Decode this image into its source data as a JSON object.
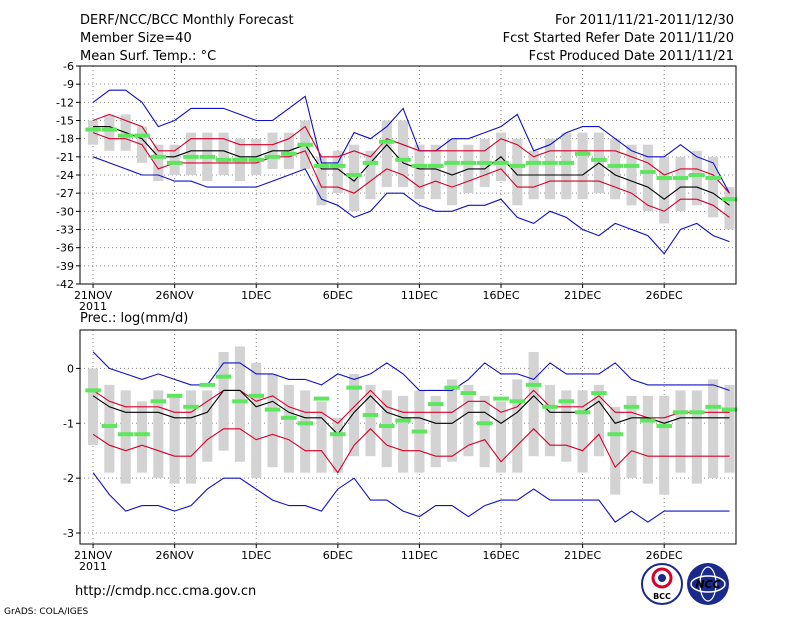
{
  "header": {
    "title": "DERF/NCC/BCC Monthly Forecast",
    "member": "Member Size=40",
    "variable": "Mean Surf. Temp.: °C",
    "period": "For 2011/11/21-2011/12/30",
    "started": "Fcst Started Refer Date 2011/11/20",
    "produced": "Fcst Produced Date 2011/11/21"
  },
  "footer": {
    "url": "http://cmdp.ncc.cma.gov.cn",
    "grads": "GrADS: COLA/IGES",
    "bcc_logo_text": "BCC",
    "ncc_logo_text": "NCC"
  },
  "colors": {
    "mean": "#000000",
    "spread": "#d6002a",
    "extreme": "#1010c8",
    "box": "#d3d3d3",
    "observed": "#5ee65e",
    "grid": "#888888"
  },
  "chart_data": [
    {
      "type": "line",
      "title": "Mean Surf. Temp.: °C",
      "xlabel": "",
      "ylabel": "",
      "x_tick_labels": [
        "21NOV",
        "26NOV",
        "1DEC",
        "6DEC",
        "11DEC",
        "16DEC",
        "21DEC",
        "26DEC"
      ],
      "x_tick_days": [
        1,
        6,
        11,
        16,
        21,
        26,
        31,
        36
      ],
      "x_year_label": "2011",
      "xlim": [
        0.2,
        40.4
      ],
      "ylim": [
        -42,
        -6
      ],
      "y_ticks": [
        -42,
        -39,
        -36,
        -33,
        -30,
        -27,
        -24,
        -21,
        -18,
        -15,
        -12,
        -9,
        -6
      ],
      "days": [
        1,
        2,
        3,
        4,
        5,
        6,
        7,
        8,
        9,
        10,
        11,
        12,
        13,
        14,
        15,
        16,
        17,
        18,
        19,
        20,
        21,
        22,
        23,
        24,
        25,
        26,
        27,
        28,
        29,
        30,
        31,
        32,
        33,
        34,
        35,
        36,
        37,
        38,
        39,
        40
      ],
      "series": [
        {
          "name": "ensemble max",
          "color_key": "extreme",
          "values": [
            -12,
            -10,
            -10,
            -12,
            -16,
            -15,
            -13,
            -13,
            -13,
            -14,
            -15,
            -15,
            -13,
            -11,
            -22,
            -22,
            -17,
            -18,
            -16,
            -13,
            -20,
            -20,
            -18,
            -18,
            -17,
            -16,
            -14,
            -20,
            -19,
            -17,
            -16,
            -16,
            -18,
            -20,
            -21,
            -21,
            -19,
            -21,
            -22,
            -27
          ]
        },
        {
          "name": "upper spread",
          "color_key": "spread",
          "values": [
            -15,
            -14,
            -15,
            -16,
            -20,
            -20,
            -18,
            -18,
            -18,
            -19,
            -19,
            -19,
            -18,
            -16,
            -21,
            -21,
            -20,
            -21,
            -18,
            -19,
            -20,
            -20,
            -20,
            -20,
            -20,
            -18,
            -19,
            -21,
            -20,
            -20,
            -20,
            -20,
            -20,
            -21,
            -22,
            -24,
            -23,
            -23,
            -24,
            -27
          ]
        },
        {
          "name": "ensemble mean",
          "color_key": "mean",
          "values": [
            -16,
            -16,
            -17,
            -18,
            -21,
            -21,
            -20,
            -20,
            -20,
            -21,
            -21,
            -20,
            -20,
            -19,
            -23,
            -23,
            -25,
            -22,
            -19,
            -22,
            -23,
            -23,
            -24,
            -23,
            -23,
            -21,
            -24,
            -24,
            -24,
            -24,
            -24,
            -22,
            -24,
            -25,
            -26,
            -28,
            -26,
            -26,
            -27,
            -29
          ]
        },
        {
          "name": "lower spread",
          "color_key": "spread",
          "values": [
            -17,
            -18,
            -18,
            -19,
            -23,
            -22,
            -22,
            -22,
            -22,
            -22,
            -22,
            -21,
            -21,
            -20,
            -26,
            -26,
            -27,
            -25,
            -23,
            -24,
            -26,
            -25,
            -26,
            -25,
            -24,
            -23,
            -26,
            -26,
            -25,
            -25,
            -25,
            -25,
            -26,
            -27,
            -29,
            -30,
            -28,
            -28,
            -29,
            -31
          ]
        },
        {
          "name": "ensemble min",
          "color_key": "extreme",
          "values": [
            -21,
            -22,
            -23,
            -24,
            -24,
            -25,
            -25,
            -26,
            -26,
            -26,
            -26,
            -25,
            -24,
            -23,
            -28,
            -29,
            -31,
            -30,
            -27,
            -27,
            -29,
            -30,
            -30,
            -29,
            -29,
            -28,
            -31,
            -32,
            -30,
            -31,
            -33,
            -34,
            -32,
            -33,
            -34,
            -37,
            -33,
            -32,
            -34,
            -35
          ]
        }
      ],
      "box_low": [
        -19,
        -20,
        -20,
        -22,
        -25,
        -24,
        -24,
        -25,
        -24,
        -25,
        -24,
        -23,
        -23,
        -23,
        -29,
        -27,
        -30,
        -28,
        -26,
        -26,
        -28,
        -28,
        -29,
        -27,
        -26,
        -25,
        -29,
        -28,
        -28,
        -28,
        -28,
        -27,
        -28,
        -29,
        -30,
        -32,
        -30,
        -29,
        -31,
        -33
      ],
      "box_high": [
        -15,
        -14,
        -14,
        -16,
        -19,
        -19,
        -17,
        -17,
        -17,
        -18,
        -18,
        -17,
        -17,
        -15,
        -21,
        -20,
        -19,
        -20,
        -15,
        -15,
        -19,
        -19,
        -18,
        -19,
        -18,
        -17,
        -18,
        -20,
        -18,
        -17,
        -17,
        -17,
        -18,
        -19,
        -19,
        -21,
        -21,
        -20,
        -21,
        -26
      ],
      "observed": [
        -16.5,
        -16.5,
        -17.5,
        -17.5,
        -21,
        -22,
        -21,
        -21,
        -21.5,
        -21.5,
        -21.5,
        -21,
        -20.5,
        -19,
        -22.5,
        -22.5,
        -24,
        -22,
        -18.5,
        -21.5,
        -22.5,
        -22.5,
        -22,
        -22,
        -22,
        -22,
        -22.5,
        -22,
        -22,
        -22,
        -20.5,
        -21.5,
        -22.5,
        -22.5,
        -23.5,
        -24.5,
        -24.5,
        -24,
        -24.5,
        -28
      ]
    },
    {
      "type": "line",
      "title": "Prec.: log(mm/d)",
      "xlabel": "",
      "ylabel": "",
      "x_tick_labels": [
        "21NOV",
        "26NOV",
        "1DEC",
        "6DEC",
        "11DEC",
        "16DEC",
        "21DEC",
        "26DEC"
      ],
      "x_tick_days": [
        1,
        6,
        11,
        16,
        21,
        26,
        31,
        36
      ],
      "x_year_label": "2011",
      "xlim": [
        0.2,
        40.4
      ],
      "ylim": [
        -3.2,
        0.7
      ],
      "y_ticks": [
        -3,
        -2,
        -1,
        0
      ],
      "days": [
        1,
        2,
        3,
        4,
        5,
        6,
        7,
        8,
        9,
        10,
        11,
        12,
        13,
        14,
        15,
        16,
        17,
        18,
        19,
        20,
        21,
        22,
        23,
        24,
        25,
        26,
        27,
        28,
        29,
        30,
        31,
        32,
        33,
        34,
        35,
        36,
        37,
        38,
        39,
        40
      ],
      "series": [
        {
          "name": "ensemble max",
          "color_key": "extreme",
          "values": [
            0.3,
            0.0,
            -0.1,
            -0.2,
            -0.1,
            -0.2,
            -0.3,
            -0.3,
            0.1,
            0.1,
            -0.1,
            -0.1,
            -0.2,
            -0.2,
            -0.3,
            -0.1,
            -0.2,
            -0.1,
            0.1,
            -0.1,
            -0.4,
            -0.4,
            -0.4,
            -0.2,
            0.1,
            -0.1,
            -0.1,
            -0.2,
            0.1,
            -0.1,
            -0.1,
            -0.1,
            0.1,
            -0.2,
            -0.3,
            -0.3,
            -0.3,
            -0.3,
            -0.3,
            -0.4
          ]
        },
        {
          "name": "upper spread",
          "color_key": "spread",
          "values": [
            -0.4,
            -0.6,
            -0.7,
            -0.7,
            -0.7,
            -0.8,
            -0.8,
            -0.6,
            -0.4,
            -0.4,
            -0.6,
            -0.5,
            -0.7,
            -0.8,
            -0.8,
            -1.0,
            -0.7,
            -0.4,
            -0.7,
            -0.8,
            -0.8,
            -0.8,
            -0.8,
            -0.6,
            -0.6,
            -0.8,
            -0.7,
            -0.4,
            -0.7,
            -0.7,
            -0.7,
            -0.5,
            -0.8,
            -0.8,
            -0.9,
            -0.9,
            -0.8,
            -0.8,
            -0.8,
            -0.8
          ]
        },
        {
          "name": "ensemble mean",
          "color_key": "mean",
          "values": [
            -0.5,
            -0.7,
            -0.8,
            -0.8,
            -0.8,
            -0.9,
            -0.9,
            -0.8,
            -0.4,
            -0.4,
            -0.7,
            -0.6,
            -0.8,
            -0.9,
            -0.9,
            -1.2,
            -0.8,
            -0.5,
            -0.8,
            -0.9,
            -0.9,
            -1.0,
            -1.0,
            -0.8,
            -0.8,
            -1.0,
            -0.8,
            -0.5,
            -0.8,
            -0.8,
            -0.8,
            -0.6,
            -1.0,
            -0.9,
            -0.9,
            -1.0,
            -0.9,
            -0.9,
            -0.9,
            -0.9
          ]
        },
        {
          "name": "lower spread",
          "color_key": "spread",
          "values": [
            -1.2,
            -1.4,
            -1.5,
            -1.4,
            -1.5,
            -1.6,
            -1.6,
            -1.3,
            -1.1,
            -1.1,
            -1.3,
            -1.2,
            -1.3,
            -1.5,
            -1.5,
            -1.9,
            -1.4,
            -1.1,
            -1.4,
            -1.5,
            -1.5,
            -1.6,
            -1.6,
            -1.4,
            -1.3,
            -1.7,
            -1.4,
            -1.1,
            -1.4,
            -1.4,
            -1.5,
            -1.2,
            -1.8,
            -1.5,
            -1.6,
            -1.6,
            -1.6,
            -1.6,
            -1.6,
            -1.6
          ]
        },
        {
          "name": "ensemble min",
          "color_key": "extreme",
          "values": [
            -1.9,
            -2.3,
            -2.6,
            -2.5,
            -2.5,
            -2.6,
            -2.5,
            -2.2,
            -2.0,
            -2.0,
            -2.2,
            -2.4,
            -2.5,
            -2.5,
            -2.6,
            -2.2,
            -2.0,
            -2.4,
            -2.4,
            -2.6,
            -2.7,
            -2.5,
            -2.5,
            -2.7,
            -2.5,
            -2.4,
            -2.4,
            -2.2,
            -2.4,
            -2.4,
            -2.4,
            -2.4,
            -2.8,
            -2.6,
            -2.8,
            -2.6,
            -2.6,
            -2.6,
            -2.6,
            -2.6
          ]
        }
      ],
      "box_low": [
        -1.4,
        -1.9,
        -2.1,
        -1.9,
        -2.0,
        -2.1,
        -2.1,
        -1.7,
        -1.5,
        -1.7,
        -2.0,
        -1.8,
        -1.9,
        -1.9,
        -1.9,
        -1.9,
        -1.6,
        -1.6,
        -1.8,
        -1.9,
        -1.9,
        -1.8,
        -1.7,
        -1.6,
        -1.8,
        -1.9,
        -1.9,
        -1.6,
        -1.6,
        -1.7,
        -1.9,
        -1.6,
        -2.3,
        -2.0,
        -2.1,
        -2.3,
        -1.9,
        -2.1,
        -2.0,
        -1.9
      ],
      "box_high": [
        0.0,
        -0.3,
        -0.4,
        -0.6,
        -0.4,
        -0.5,
        -0.4,
        -0.4,
        0.3,
        0.4,
        0.1,
        -0.1,
        -0.3,
        -0.4,
        -0.6,
        -0.9,
        -0.1,
        -0.3,
        -0.4,
        -0.5,
        -0.4,
        -0.5,
        -0.2,
        -0.3,
        -0.5,
        -0.6,
        -0.2,
        0.3,
        -0.3,
        -0.4,
        -0.4,
        -0.3,
        -0.7,
        -0.5,
        -0.5,
        -0.5,
        -0.4,
        -0.4,
        -0.2,
        -0.3
      ],
      "observed": [
        -0.4,
        -1.05,
        -1.2,
        -1.2,
        -0.6,
        -0.5,
        -0.7,
        -0.3,
        -0.15,
        -0.6,
        -0.5,
        -0.75,
        -0.9,
        -1.0,
        -0.55,
        -1.2,
        -0.35,
        -0.85,
        -1.05,
        -0.95,
        -1.15,
        -0.65,
        -0.35,
        -0.45,
        -1.0,
        -0.55,
        -0.6,
        -0.3,
        -0.7,
        -0.6,
        -0.8,
        -0.45,
        -1.2,
        -0.7,
        -0.95,
        -1.05,
        -0.8,
        -0.8,
        -0.7,
        -0.75
      ]
    }
  ]
}
